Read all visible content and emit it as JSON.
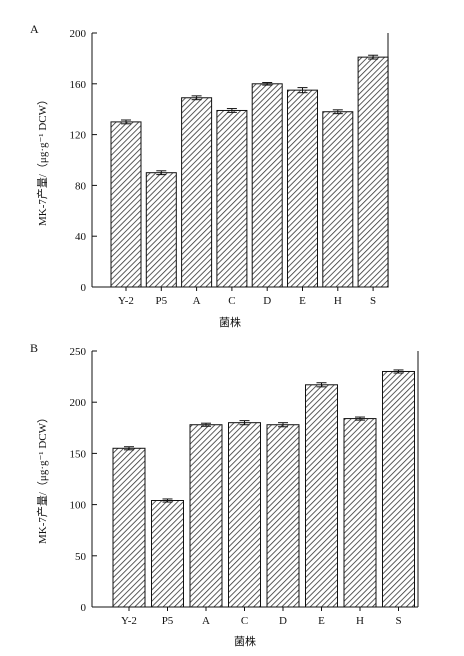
{
  "colors": {
    "axis": "#111111",
    "bar_fill": "#ffffff",
    "hatch": "#333333",
    "background": "#ffffff"
  },
  "chart_data": [
    {
      "type": "bar",
      "panel_label": "A",
      "categories": [
        "Y-2",
        "P5",
        "A",
        "C",
        "D",
        "E",
        "H",
        "S"
      ],
      "values": [
        130,
        90,
        149,
        139,
        160,
        155,
        138,
        181
      ],
      "errors": [
        1.5,
        1.5,
        1.5,
        1.5,
        1,
        2,
        1.5,
        1.5
      ],
      "xlabel": "菌株",
      "ylabel": "MK-7产量/（μg·g⁻¹ DCW）",
      "ylim": [
        0,
        200
      ],
      "yticks": [
        0,
        40,
        80,
        120,
        160,
        200
      ],
      "fill": "diagonal-hatch",
      "grid": false,
      "legend": "none"
    },
    {
      "type": "bar",
      "panel_label": "B",
      "categories": [
        "Y-2",
        "P5",
        "A",
        "C",
        "D",
        "E",
        "H",
        "S"
      ],
      "values": [
        155,
        104,
        178,
        180,
        178,
        217,
        184,
        230
      ],
      "errors": [
        1.5,
        1.5,
        1.5,
        2,
        2,
        2,
        1.5,
        1.5
      ],
      "xlabel": "菌株",
      "ylabel": "MK-7产量/（μg·g⁻¹ DCW）",
      "ylim": [
        0,
        250
      ],
      "yticks": [
        0,
        50,
        100,
        150,
        200,
        250
      ],
      "fill": "diagonal-hatch",
      "grid": false,
      "legend": "none"
    }
  ]
}
